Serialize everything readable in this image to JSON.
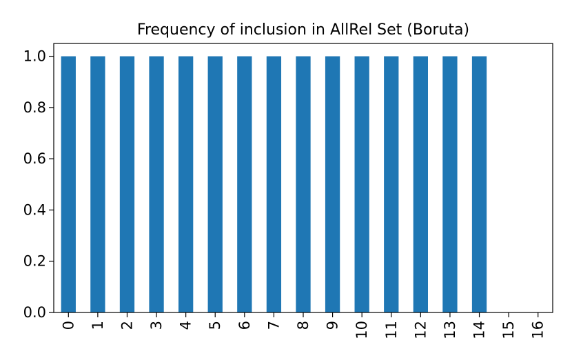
{
  "chart_data": {
    "type": "bar",
    "title": "Frequency of inclusion in AllRel Set (Boruta)",
    "xlabel": "",
    "ylabel": "",
    "categories": [
      "0",
      "1",
      "2",
      "3",
      "4",
      "5",
      "6",
      "7",
      "8",
      "9",
      "10",
      "11",
      "12",
      "13",
      "14",
      "15",
      "16"
    ],
    "values": [
      1.0,
      1.0,
      1.0,
      1.0,
      1.0,
      1.0,
      1.0,
      1.0,
      1.0,
      1.0,
      1.0,
      1.0,
      1.0,
      1.0,
      1.0,
      0.0,
      0.0
    ],
    "ylim": [
      0,
      1.05
    ],
    "yticks": [
      "0.0",
      "0.2",
      "0.4",
      "0.6",
      "0.8",
      "1.0"
    ],
    "bar_color": "#1f77b4",
    "grid": false,
    "legend": "none"
  }
}
